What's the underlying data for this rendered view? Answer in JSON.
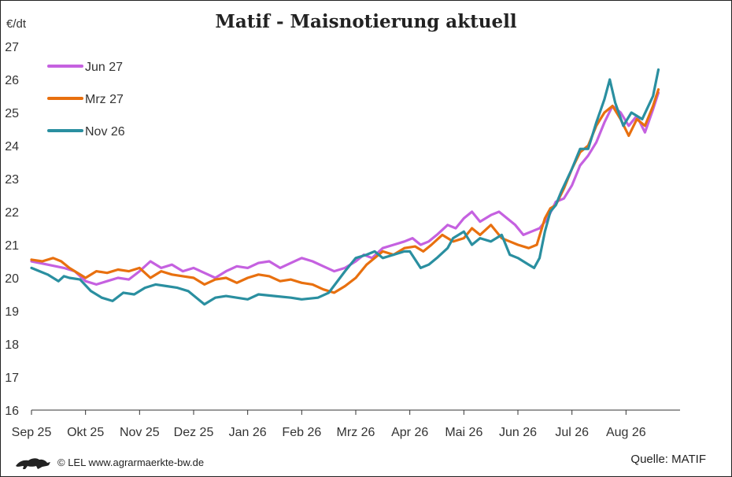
{
  "header": {
    "title": "Matif - Maisnotierung aktuell",
    "unit": "€/dt"
  },
  "footer": {
    "copyright": "© LEL www.agrarmaerkte-bw.de",
    "source": "Quelle: MATIF"
  },
  "chart_data": {
    "type": "line",
    "title": "Matif - Maisnotierung aktuell",
    "ylabel": "€/dt",
    "xlabel": "",
    "ylim": [
      16,
      27
    ],
    "yticks": [
      16,
      17,
      18,
      19,
      20,
      21,
      22,
      23,
      24,
      25,
      26,
      27
    ],
    "xlim": [
      0,
      12
    ],
    "months": [
      "Sep 25",
      "Okt 25",
      "Nov 25",
      "Dez 25",
      "Jan 26",
      "Feb 26",
      "Mrz 26",
      "Apr 26",
      "Mai 26",
      "Jun 26",
      "Jul 26",
      "Aug 26"
    ],
    "legend_position": "top-left",
    "grid": false,
    "colors": {
      "Jun 27": "#c561e0",
      "Mrz 27": "#e8700f",
      "Nov 26": "#2a8fa0"
    },
    "series": [
      {
        "name": "Nov 26",
        "x": [
          0,
          0.15,
          0.3,
          0.5,
          0.6,
          0.7,
          0.9,
          1.1,
          1.3,
          1.5,
          1.7,
          1.9,
          2.1,
          2.3,
          2.5,
          2.7,
          2.9,
          3.2,
          3.4,
          3.6,
          3.8,
          4.0,
          4.2,
          4.5,
          4.8,
          5.0,
          5.3,
          5.5,
          5.8,
          6.0,
          6.2,
          6.35,
          6.5,
          6.7,
          6.9,
          7.0,
          7.2,
          7.35,
          7.5,
          7.7,
          7.8,
          8.0,
          8.15,
          8.3,
          8.5,
          8.7,
          8.85,
          9.0,
          9.2,
          9.3,
          9.4,
          9.5,
          9.6,
          9.7,
          9.8,
          10.0,
          10.15,
          10.3,
          10.45,
          10.6,
          10.7,
          10.8,
          10.95,
          11.1,
          11.3,
          11.5,
          11.6
        ],
        "values": [
          20.3,
          20.2,
          20.1,
          19.9,
          20.05,
          20.0,
          19.95,
          19.6,
          19.4,
          19.3,
          19.55,
          19.5,
          19.7,
          19.8,
          19.75,
          19.7,
          19.6,
          19.2,
          19.4,
          19.45,
          19.4,
          19.35,
          19.5,
          19.45,
          19.4,
          19.35,
          19.4,
          19.55,
          20.2,
          20.6,
          20.7,
          20.8,
          20.6,
          20.7,
          20.8,
          20.8,
          20.3,
          20.4,
          20.6,
          20.9,
          21.2,
          21.4,
          21.0,
          21.2,
          21.1,
          21.3,
          20.7,
          20.6,
          20.4,
          20.3,
          20.6,
          21.4,
          22.0,
          22.2,
          22.6,
          23.3,
          23.9,
          23.9,
          24.7,
          25.4,
          26.0,
          25.3,
          24.6,
          25.0,
          24.8,
          25.5,
          26.3
        ]
      },
      {
        "name": "Mrz 27",
        "x": [
          0,
          0.2,
          0.4,
          0.55,
          0.7,
          0.9,
          1.0,
          1.2,
          1.4,
          1.6,
          1.8,
          2.0,
          2.2,
          2.4,
          2.6,
          2.8,
          3.0,
          3.2,
          3.4,
          3.6,
          3.8,
          4.0,
          4.2,
          4.4,
          4.6,
          4.8,
          5.0,
          5.2,
          5.4,
          5.6,
          5.8,
          6.0,
          6.2,
          6.35,
          6.5,
          6.7,
          6.9,
          7.1,
          7.25,
          7.4,
          7.6,
          7.8,
          8.0,
          8.15,
          8.3,
          8.5,
          8.7,
          8.85,
          9.0,
          9.2,
          9.35,
          9.5,
          9.6,
          9.7,
          9.85,
          10.0,
          10.15,
          10.3,
          10.45,
          10.6,
          10.75,
          10.9,
          11.05,
          11.2,
          11.35,
          11.5,
          11.6
        ],
        "values": [
          20.55,
          20.5,
          20.6,
          20.5,
          20.3,
          20.1,
          20.0,
          20.2,
          20.15,
          20.25,
          20.2,
          20.3,
          20.0,
          20.2,
          20.1,
          20.05,
          20.0,
          19.8,
          19.95,
          20.0,
          19.85,
          20.0,
          20.1,
          20.05,
          19.9,
          19.95,
          19.85,
          19.8,
          19.65,
          19.55,
          19.75,
          20.0,
          20.4,
          20.6,
          20.8,
          20.7,
          20.9,
          20.95,
          20.8,
          21.0,
          21.3,
          21.1,
          21.2,
          21.5,
          21.3,
          21.6,
          21.2,
          21.1,
          21.0,
          20.9,
          21.0,
          21.8,
          22.1,
          22.2,
          22.7,
          23.3,
          23.8,
          24.0,
          24.6,
          25.0,
          25.2,
          24.8,
          24.3,
          24.8,
          24.6,
          25.2,
          25.7
        ]
      },
      {
        "name": "Jun 27",
        "x": [
          0,
          0.3,
          0.6,
          0.8,
          1.0,
          1.2,
          1.4,
          1.6,
          1.8,
          2.0,
          2.2,
          2.4,
          2.6,
          2.8,
          3.0,
          3.2,
          3.4,
          3.6,
          3.8,
          4.0,
          4.2,
          4.4,
          4.6,
          4.8,
          5.0,
          5.2,
          5.4,
          5.6,
          5.8,
          6.0,
          6.15,
          6.3,
          6.5,
          6.7,
          6.9,
          7.05,
          7.2,
          7.35,
          7.5,
          7.7,
          7.85,
          8.0,
          8.15,
          8.3,
          8.5,
          8.65,
          8.8,
          8.95,
          9.1,
          9.25,
          9.4,
          9.55,
          9.7,
          9.85,
          10.0,
          10.15,
          10.3,
          10.45,
          10.6,
          10.75,
          10.9,
          11.05,
          11.2,
          11.35,
          11.5,
          11.6
        ],
        "values": [
          20.5,
          20.4,
          20.3,
          20.2,
          19.9,
          19.8,
          19.9,
          20.0,
          19.95,
          20.2,
          20.5,
          20.3,
          20.4,
          20.2,
          20.3,
          20.15,
          20.0,
          20.2,
          20.35,
          20.3,
          20.45,
          20.5,
          20.3,
          20.45,
          20.6,
          20.5,
          20.35,
          20.2,
          20.3,
          20.5,
          20.7,
          20.6,
          20.9,
          21.0,
          21.1,
          21.2,
          21.0,
          21.1,
          21.3,
          21.6,
          21.5,
          21.8,
          22.0,
          21.7,
          21.9,
          22.0,
          21.8,
          21.6,
          21.3,
          21.4,
          21.5,
          21.8,
          22.3,
          22.4,
          22.8,
          23.4,
          23.7,
          24.1,
          24.7,
          25.2,
          25.0,
          24.6,
          24.9,
          24.4,
          25.1,
          25.6
        ]
      }
    ]
  }
}
